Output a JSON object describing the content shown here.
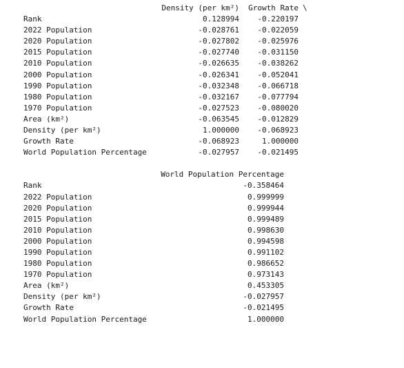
{
  "table1": {
    "columns": [
      "Density (per km²)",
      "Growth Rate"
    ],
    "continuation": "\\",
    "rows": [
      {
        "label": "Rank",
        "v": [
          "0.128994",
          "-0.220197"
        ]
      },
      {
        "label": "2022 Population",
        "v": [
          "-0.028761",
          "-0.022059"
        ]
      },
      {
        "label": "2020 Population",
        "v": [
          "-0.027802",
          "-0.025976"
        ]
      },
      {
        "label": "2015 Population",
        "v": [
          "-0.027740",
          "-0.031150"
        ]
      },
      {
        "label": "2010 Population",
        "v": [
          "-0.026635",
          "-0.038262"
        ]
      },
      {
        "label": "2000 Population",
        "v": [
          "-0.026341",
          "-0.052041"
        ]
      },
      {
        "label": "1990 Population",
        "v": [
          "-0.032348",
          "-0.066718"
        ]
      },
      {
        "label": "1980 Population",
        "v": [
          "-0.032167",
          "-0.077794"
        ]
      },
      {
        "label": "1970 Population",
        "v": [
          "-0.027523",
          "-0.080020"
        ]
      },
      {
        "label": "Area (km²)",
        "v": [
          "-0.063545",
          "-0.012829"
        ]
      },
      {
        "label": "Density (per km²)",
        "v": [
          "1.000000",
          "-0.068923"
        ]
      },
      {
        "label": "Growth Rate",
        "v": [
          "-0.068923",
          "1.000000"
        ]
      },
      {
        "label": "World Population Percentage",
        "v": [
          "-0.027957",
          "-0.021495"
        ]
      }
    ]
  },
  "table2": {
    "column": "World Population Percentage",
    "rows": [
      {
        "label": "Rank",
        "v": "-0.358464"
      },
      {
        "label": "2022 Population",
        "v": "0.999999"
      },
      {
        "label": "2020 Population",
        "v": "0.999944"
      },
      {
        "label": "2015 Population",
        "v": "0.999489"
      },
      {
        "label": "2010 Population",
        "v": "0.998630"
      },
      {
        "label": "2000 Population",
        "v": "0.994598"
      },
      {
        "label": "1990 Population",
        "v": "0.991102"
      },
      {
        "label": "1980 Population",
        "v": "0.986652"
      },
      {
        "label": "1970 Population",
        "v": "0.973143"
      },
      {
        "label": "Area (km²)",
        "v": "0.453305"
      },
      {
        "label": "Density (per km²)",
        "v": "-0.027957"
      },
      {
        "label": "Growth Rate",
        "v": "-0.021495"
      },
      {
        "label": "World Population Percentage",
        "v": "1.000000"
      }
    ]
  }
}
